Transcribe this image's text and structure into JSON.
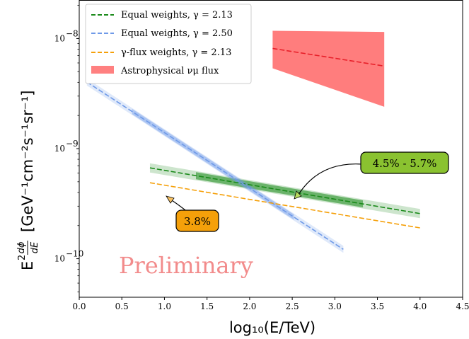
{
  "chart_data": {
    "type": "line",
    "xlabel": "log₁₀(E/TeV)",
    "ylabel_parts": {
      "a": "E",
      "b": "2",
      "c": "dϕ",
      "d": "dE",
      "e": "[GeV⁻¹cm⁻²s⁻¹sr⁻¹]"
    },
    "xlim": [
      0.0,
      4.5
    ],
    "ylim_log10": [
      -10.35,
      -7.65
    ],
    "yscale": "log",
    "x_ticks": [
      "0.0",
      "0.5",
      "1.0",
      "1.5",
      "2.0",
      "2.5",
      "3.0",
      "3.5",
      "4.0",
      "4.5"
    ],
    "y_ticks": [
      {
        "base": "10",
        "exp": "−8",
        "log10": -8
      },
      {
        "base": "10",
        "exp": "−9",
        "log10": -9
      },
      {
        "base": "10",
        "exp": "−10",
        "log10": -10
      }
    ],
    "legend_position": "top-left",
    "series": [
      {
        "name": "Equal weights, γ = 2.13",
        "color": "#1a8a1a",
        "x": [
          0.83,
          4.0
        ],
        "log10_y": [
          -9.175,
          -9.59
        ],
        "band_halfwidth_log": 0.042,
        "highlight_x": [
          1.37,
          3.33
        ],
        "highlight_halfwidth_log": 0.032
      },
      {
        "name": "Equal weights, γ = 2.50",
        "color": "#6f9ae8",
        "x": [
          0.09,
          3.1
        ],
        "log10_y": [
          -8.395,
          -9.915
        ],
        "band_halfwidth_log": 0.032,
        "highlight_x": [
          0.62,
          2.52
        ],
        "highlight_halfwidth_log": 0.024
      },
      {
        "name": "γ-flux weights, γ = 2.13",
        "color": "#f5a00a",
        "x": [
          0.83,
          4.0
        ],
        "log10_y": [
          -9.31,
          -9.72
        ]
      },
      {
        "name": "Astrophysical νμ flux",
        "color": "#ff6f6f",
        "x": [
          2.27,
          3.58
        ],
        "log10_y": [
          -8.09,
          -8.25
        ],
        "band_upper_log10": [
          -7.93,
          -7.94
        ],
        "band_lower_log10": [
          -8.27,
          -8.62
        ]
      }
    ],
    "annotations": [
      {
        "text": "4.5% - 5.7%",
        "bg": "#8ac230",
        "target": [
          2.55,
          -9.39
        ]
      },
      {
        "text": "3.8%",
        "bg": "#f5a00a",
        "target": [
          1.0,
          -9.37
        ]
      },
      {
        "text": "Preliminary"
      }
    ]
  }
}
